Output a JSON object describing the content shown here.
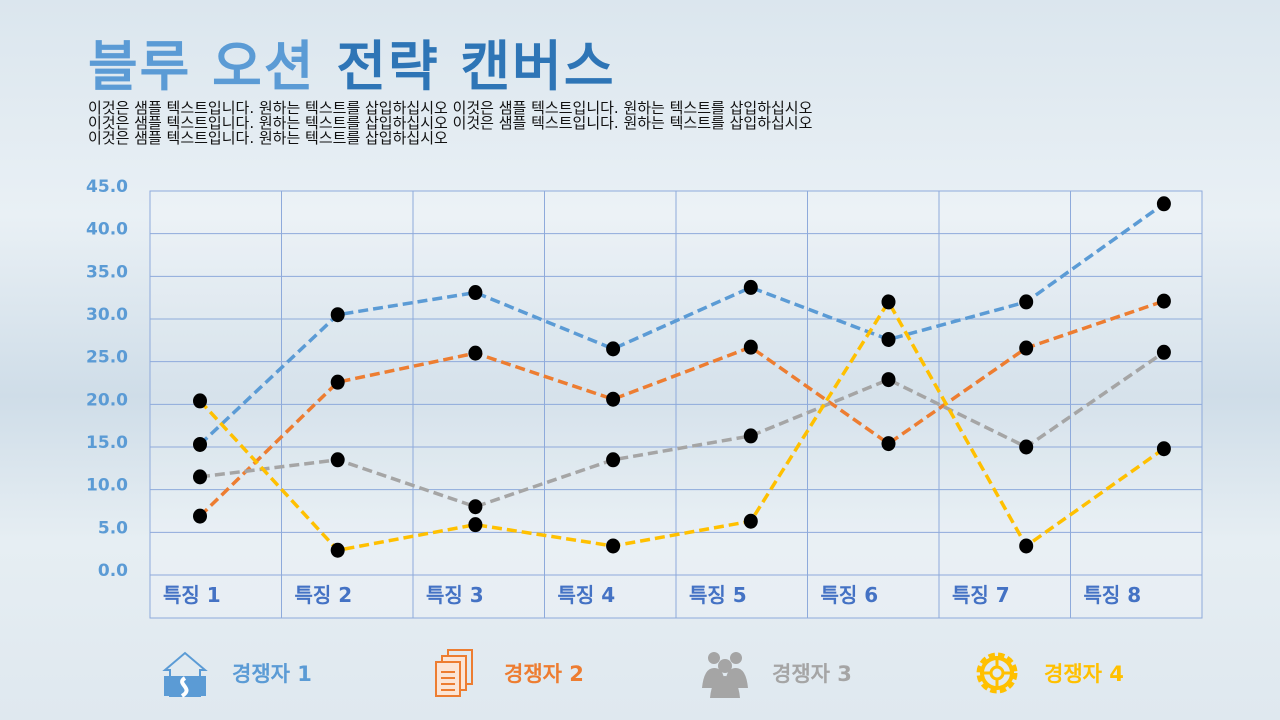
{
  "title": {
    "part1": "블루 오션",
    "part2": "전략 캔버스"
  },
  "description": [
    "이것은 샘플 텍스트입니다. 원하는 텍스트를 삽입하십시오 이것은 샘플 텍스트입니다. 원하는 텍스트를 삽입하십시오",
    "이것은 샘플 텍스트입니다. 원하는 텍스트를 삽입하십시오 이것은 샘플 텍스트입니다. 원하는 텍스트를 삽입하십시오",
    "이것은 샘플 텍스트입니다. 원하는 텍스트를 삽입하십시오"
  ],
  "chart_data": {
    "type": "line",
    "ylim": [
      0,
      45
    ],
    "yticks": [
      "0.0",
      "5.0",
      "10.0",
      "15.0",
      "20.0",
      "25.0",
      "30.0",
      "35.0",
      "40.0",
      "45.0"
    ],
    "categories": [
      "특징 1",
      "특징 2",
      "특징 3",
      "특징 4",
      "특징 5",
      "특징 6",
      "특징 7",
      "특징 8"
    ],
    "series": [
      {
        "name": "경쟁자 1",
        "color": "#5b9bd5",
        "icon": "house-road-icon",
        "values": [
          15.3,
          30.5,
          33.1,
          26.5,
          33.7,
          27.6,
          32,
          43.5
        ]
      },
      {
        "name": "경쟁자 2",
        "color": "#ed7d31",
        "icon": "documents-icon",
        "values": [
          6.9,
          22.6,
          26,
          20.6,
          26.7,
          15.4,
          26.6,
          32.1
        ]
      },
      {
        "name": "경쟁자 3",
        "color": "#a5a5a5",
        "icon": "people-icon",
        "values": [
          11.5,
          13.5,
          8,
          13.5,
          16.3,
          22.9,
          15,
          26.1
        ]
      },
      {
        "name": "경쟁자 4",
        "color": "#ffc000",
        "icon": "gear-target-icon",
        "values": [
          20.4,
          2.9,
          5.9,
          3.4,
          6.3,
          32,
          3.4,
          14.8
        ]
      }
    ]
  }
}
